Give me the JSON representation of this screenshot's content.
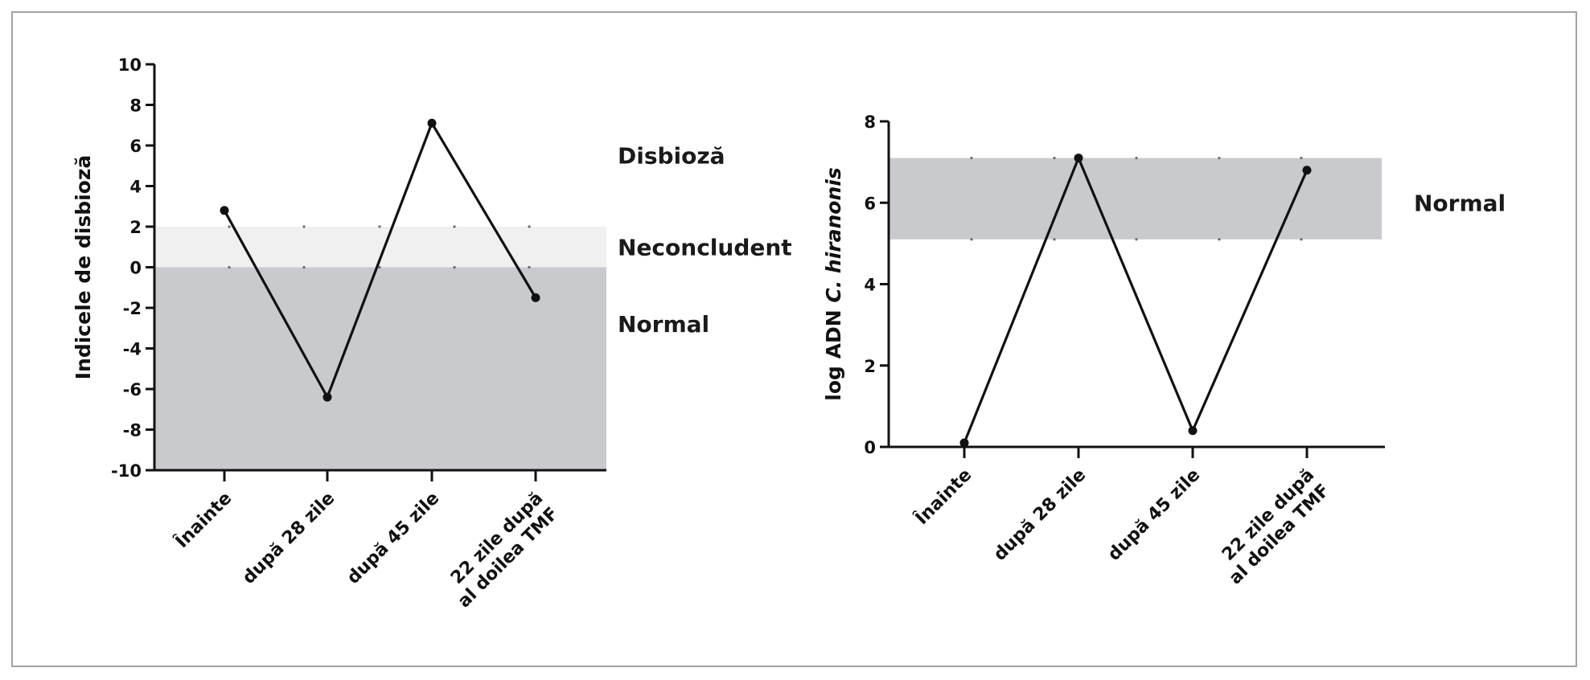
{
  "colors": {
    "zone_dark": "#c9cacd",
    "zone_light": "#f0f0f0",
    "line": "#111111",
    "frame": "#a3a3a3"
  },
  "chart_data": [
    {
      "type": "line",
      "ylabel": "Indicele de disbioză",
      "categories": [
        "Înainte",
        "după 28 zile",
        "după 45 zile",
        "22 zile după al doilea TMF"
      ],
      "category_lines": [
        [
          "Înainte"
        ],
        [
          "după 28 zile"
        ],
        [
          "după 45 zile"
        ],
        [
          "22 zile după",
          "al doilea TMF"
        ]
      ],
      "values": [
        2.8,
        -6.4,
        7.1,
        -1.5
      ],
      "ylim": [
        -10,
        10
      ],
      "yticks": [
        10,
        8,
        6,
        4,
        2,
        0,
        -2,
        -4,
        -6,
        -8,
        -10
      ],
      "zones": [
        {
          "from": -10,
          "to": 0,
          "style": "dark"
        },
        {
          "from": 0,
          "to": 2,
          "style": "light"
        }
      ],
      "zone_labels": [
        {
          "text": "Disbioză",
          "y": 5.5
        },
        {
          "text": "Neconcludent",
          "y": 1.0
        },
        {
          "text": "Normal",
          "y": -2.8
        }
      ]
    },
    {
      "type": "line",
      "ylabel_prefix": "log ADN ",
      "ylabel_italic": "C. hiranonis",
      "categories": [
        "Înainte",
        "după 28 zile",
        "după 45 zile",
        "22 zile după al doilea TMF"
      ],
      "category_lines": [
        [
          "Înainte"
        ],
        [
          "după 28 zile"
        ],
        [
          "după 45 zile"
        ],
        [
          "22 zile după",
          "al doilea TMF"
        ]
      ],
      "values": [
        0.1,
        7.1,
        0.4,
        6.8
      ],
      "ylim": [
        0,
        8
      ],
      "yticks": [
        8,
        6,
        4,
        2,
        0
      ],
      "zones": [
        {
          "from": 5.1,
          "to": 7.1,
          "style": "dark"
        }
      ],
      "zone_labels": [
        {
          "text": "Normal",
          "y": 6.0
        }
      ]
    }
  ]
}
